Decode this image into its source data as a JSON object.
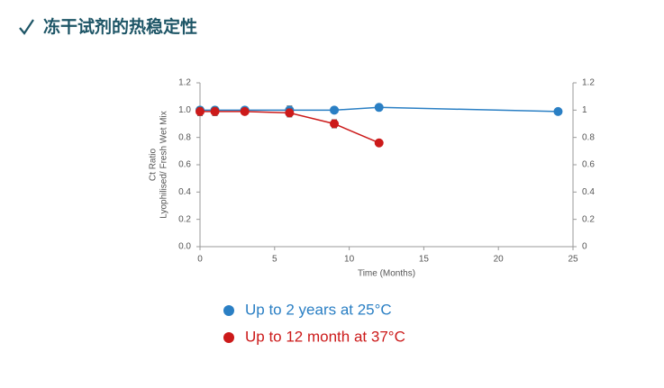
{
  "title": "冻干试剂的热稳定性",
  "chart_data": {
    "type": "line",
    "xlabel": "Time (Months)",
    "ylabel": [
      "Ct Ratio",
      "Lyophilised/ Fresh Wet Mix"
    ],
    "xlim": [
      0,
      25
    ],
    "xticks": [
      0,
      5,
      10,
      15,
      20,
      25
    ],
    "ylim": [
      0,
      1.2
    ],
    "yticks": [
      {
        "value": 0,
        "label": "0.0"
      },
      0.2,
      0.4,
      0.6,
      0.8,
      {
        "value": 1,
        "label": "1.0"
      },
      1.2
    ],
    "y2lim": [
      0,
      1.2
    ],
    "y2ticks": [
      0,
      0.2,
      0.4,
      0.6,
      0.8,
      1,
      1.2
    ],
    "legend": "bottom",
    "series": [
      {
        "name": "Up to 2 years at 25°C",
        "color": "#2a7fc4",
        "x": [
          0,
          1,
          3,
          6,
          9,
          12,
          24
        ],
        "values": [
          1.0,
          1.0,
          1.0,
          1.0,
          1.0,
          1.02,
          0.99
        ],
        "errors": [
          0.02,
          0.02,
          0.02,
          0.03,
          0.01,
          0.01,
          0.01
        ]
      },
      {
        "name": "Up to 12 month at 37°C",
        "color": "#cc1a1a",
        "x": [
          0,
          1,
          3,
          6,
          9,
          12
        ],
        "values": [
          0.99,
          0.99,
          0.99,
          0.98,
          0.9,
          0.76
        ],
        "errors": [
          0.03,
          0.03,
          0.02,
          0.03,
          0.03,
          0.02
        ]
      }
    ]
  }
}
